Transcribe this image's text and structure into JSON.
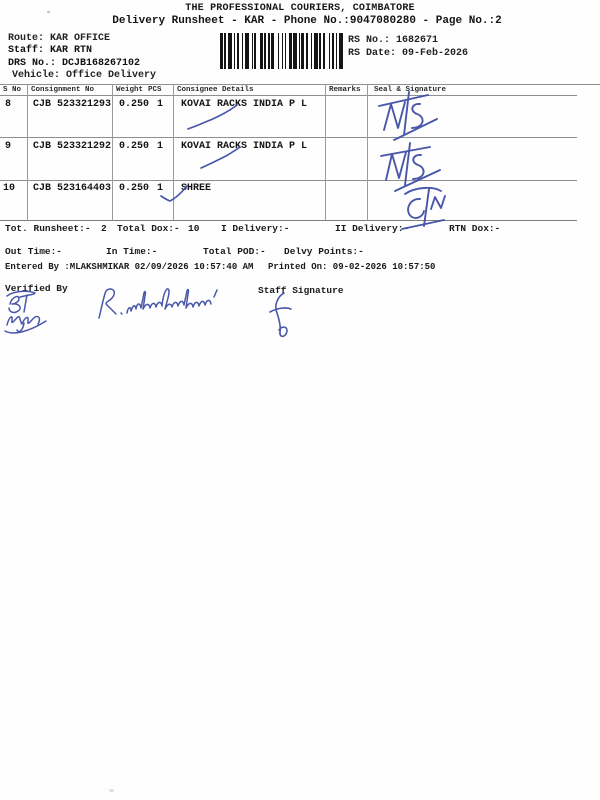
{
  "document": {
    "title": "THE PROFESSIONAL COURIERS, COIMBATORE",
    "subtitle": "Delivery Runsheet - KAR - Phone No.:9047080280 - Page No.:2"
  },
  "header": {
    "route": "Route: KAR OFFICE",
    "staff": "Staff: KAR RTN",
    "drs_no": "DRS No.: DCJB168267102",
    "vehicle": "Vehicle: Office Delivery",
    "rs_no": "RS No.: 1682671",
    "rs_date": "RS Date: 09-Feb-2026",
    "barcode_icon": "barcode"
  },
  "table": {
    "headers": {
      "s_no": "S No",
      "consignment_no": "Consignment No",
      "weight": "Weight",
      "pcs": "PCS",
      "consignee": "Consignee Details",
      "remarks": "Remarks",
      "seal": "Seal & Signature"
    },
    "rows": [
      {
        "s_no": "8",
        "consignment_no": "CJB 523321293",
        "weight": "0.250",
        "pcs": "1",
        "consignee": "KOVAI RACKS INDIA P L",
        "remarks": "",
        "seal_handwritten": "NTS"
      },
      {
        "s_no": "9",
        "consignment_no": "CJB 523321292",
        "weight": "0.250",
        "pcs": "1",
        "consignee": "KOVAI RACKS INDIA P L",
        "remarks": "",
        "seal_handwritten": "NTS"
      },
      {
        "s_no": "10",
        "consignment_no": "CJB 523164403",
        "weight": "0.250",
        "pcs": "1",
        "consignee": "SHREE",
        "remarks": "",
        "seal_handwritten": "CTN"
      }
    ]
  },
  "summary": {
    "tot_runsheet_label": "Tot. Runsheet:-",
    "tot_runsheet_value": "2",
    "total_dox_label": "Total Dox:-",
    "total_dox_value": "10",
    "i_delivery_label": "I Delivery:-",
    "ii_delivery_label": "II Delivery:-",
    "rtn_dox_label": "RTN Dox:-",
    "out_time_label": "Out Time:-",
    "in_time_label": "In Time:-",
    "total_pod_label": "Total POD:-",
    "delvy_points_label": "Delvy Points:-"
  },
  "footer": {
    "entered_by": "Entered By :MLAKSHMIKAR 02/09/2026 10:57:40 AM",
    "printed_on": "Printed On: 09-02-2026 10:57:50",
    "verified_by_label": "Verified By",
    "staff_signature_label": "Staff Signature",
    "verified_signature_handwritten": "B.T laghu",
    "verifier_name_handwritten": "R. muthulakshmi",
    "ink_color": "#3a49a4"
  }
}
